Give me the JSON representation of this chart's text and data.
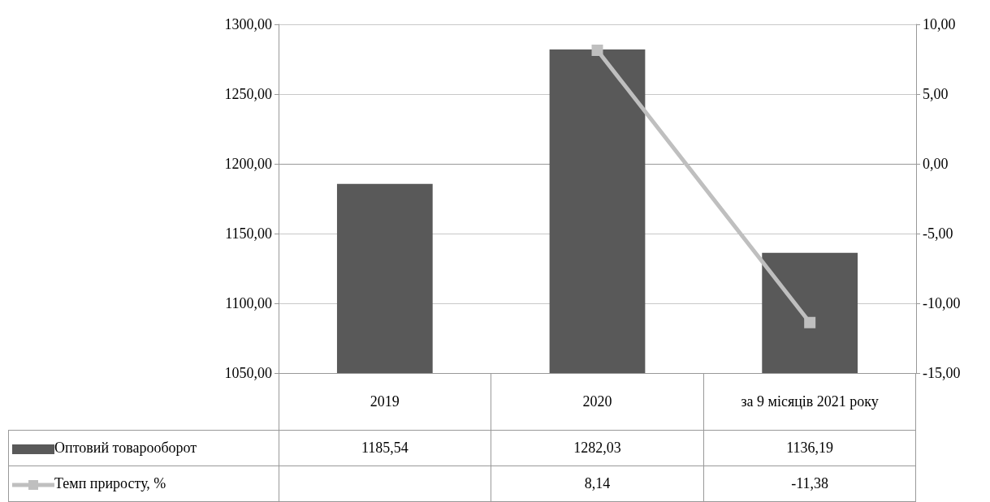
{
  "chart_data": {
    "type": "bar",
    "categories": [
      "2019",
      "2020",
      "за 9 місяців 2021 року"
    ],
    "series": [
      {
        "name": "Оптовий товарооборот",
        "color": "#595959",
        "values": [
          1185.54,
          1282.03,
          1136.19
        ],
        "value_labels": [
          "1185,54",
          "1282,03",
          "1136,19"
        ]
      },
      {
        "name": "Темп приросту, %",
        "type": "line",
        "axis": "y2",
        "color": "#bfbfbf",
        "values": [
          null,
          8.14,
          -11.38
        ],
        "value_labels": [
          null,
          "8,14",
          "-11,38"
        ]
      }
    ],
    "ylim": [
      1050,
      1300
    ],
    "yticks": [
      {
        "value": 1050,
        "label": "1050,00"
      },
      {
        "value": 1100,
        "label": "1100,00"
      },
      {
        "value": 1150,
        "label": "1150,00"
      },
      {
        "value": 1200,
        "label": "1200,00"
      },
      {
        "value": 1250,
        "label": "1250,00"
      },
      {
        "value": 1300,
        "label": "1300,00"
      }
    ],
    "y2lim": [
      -15,
      10
    ],
    "y2ticks": [
      {
        "value": -15,
        "label": "-15,00"
      },
      {
        "value": -10,
        "label": "-10,00"
      },
      {
        "value": -5,
        "label": "-5,00"
      },
      {
        "value": 0,
        "label": "0,00"
      },
      {
        "value": 5,
        "label": "5,00"
      },
      {
        "value": 10,
        "label": "10,00"
      }
    ],
    "grid": "y",
    "legend": "bottom",
    "marker": "square",
    "line_style": "solid"
  }
}
